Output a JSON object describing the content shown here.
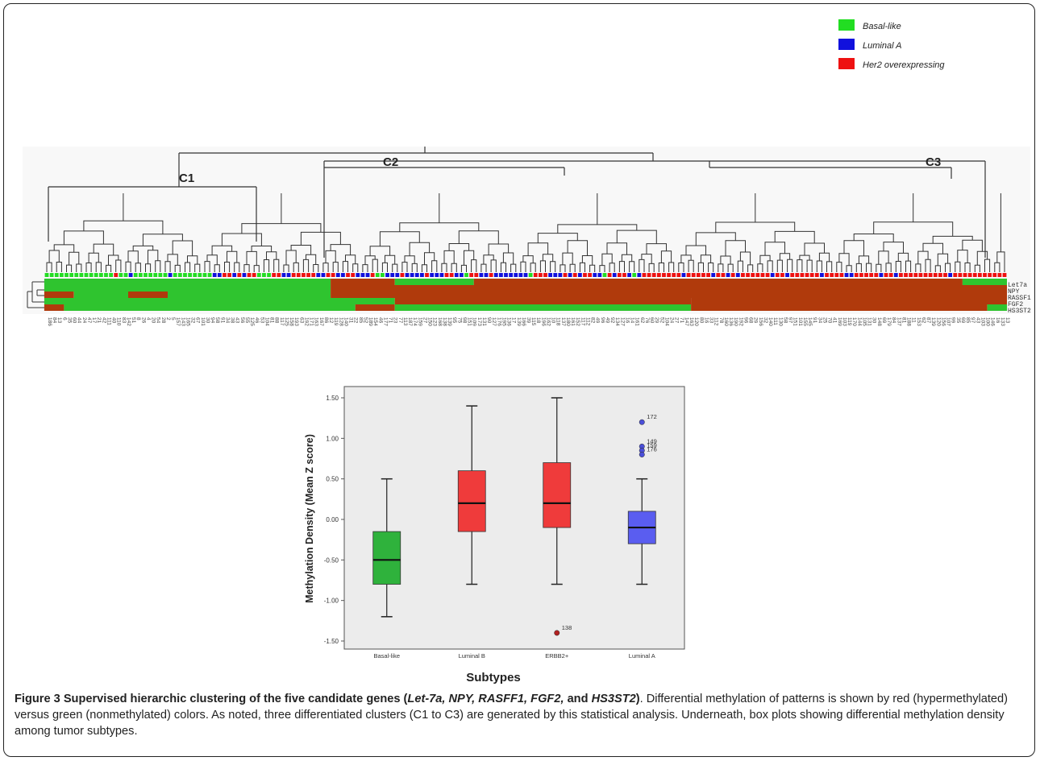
{
  "legend": [
    {
      "label": "Basal-like",
      "color": "#22dd22"
    },
    {
      "label": "Luminal A",
      "color": "#1111dd"
    },
    {
      "label": "Her2 overexpressing",
      "color": "#ee1111"
    }
  ],
  "cluster_labels": [
    "C1",
    "C2",
    "C3"
  ],
  "gene_labels": [
    "Let7a",
    "NPY",
    "RASSF1",
    "FGF2",
    "HS3ST2"
  ],
  "heatmap_colors": {
    "methylated": "#b03a0c",
    "unmethylated": "#2fc42f"
  },
  "sample_ids": [
    "186",
    "84",
    "13",
    "6",
    "35",
    "60",
    "44",
    "24",
    "47",
    "17",
    "21",
    "42",
    "111",
    "40",
    "110",
    "83",
    "142",
    "51",
    "8",
    "26",
    "4",
    "20",
    "54",
    "28",
    "2",
    "5",
    "157",
    "143",
    "165",
    "32",
    "67",
    "101",
    "30",
    "94",
    "58",
    "91",
    "34",
    "38",
    "43",
    "56",
    "55",
    "125",
    "46",
    "53",
    "104",
    "81",
    "88",
    "117",
    "125",
    "158",
    "193",
    "63",
    "192",
    "171",
    "163",
    "167",
    "86",
    "12",
    "119",
    "128",
    "140",
    "31",
    "22",
    "85",
    "52",
    "189",
    "154",
    "46",
    "177",
    "71",
    "23",
    "77",
    "113",
    "187",
    "174",
    "159",
    "27",
    "150",
    "123",
    "168",
    "138",
    "139",
    "95",
    "75",
    "98",
    "151",
    "109",
    "173",
    "131",
    "90",
    "127",
    "176",
    "195",
    "136",
    "17",
    "139",
    "166",
    "39",
    "115",
    "18",
    "196",
    "162",
    "10",
    "118",
    "137",
    "180",
    "161",
    "152",
    "117",
    "112",
    "82",
    "49",
    "96",
    "49",
    "92",
    "134",
    "127",
    "16",
    "14",
    "161",
    "62",
    "76",
    "60",
    "29",
    "52",
    "104",
    "24",
    "27",
    "71",
    "147",
    "163",
    "120",
    "80",
    "16",
    "33",
    "112",
    "78",
    "160",
    "136",
    "190",
    "192",
    "96",
    "68",
    "29",
    "156",
    "32",
    "140",
    "111",
    "130",
    "58",
    "97",
    "151",
    "101",
    "155",
    "145",
    "91",
    "34",
    "25",
    "70",
    "41",
    "169",
    "103",
    "119",
    "170",
    "144",
    "105",
    "131",
    "30",
    "148",
    "69",
    "179",
    "84",
    "137",
    "81",
    "188",
    "11",
    "153",
    "62",
    "87",
    "139",
    "120",
    "156",
    "107",
    "99",
    "35",
    "69",
    "85",
    "97",
    "43",
    "103",
    "100",
    "146",
    "16",
    "133",
    "13"
  ],
  "sample_subtypes": "ggggggggggggggrggbgggggggbggggggggbbrrbrbrrgggrrbbrrrrrbbrrbbrrbbbrggbbbrbbbbrbbbrrbbgrrbbrbbbbbbbgrrrbbbrbrbrrbbgrbrrbgbrrrrrrrrbrrrrrbrrbrbrrrrrrbrrbrrrrrrbrrrrbbrrrrrbrrbrrrrrrrrrrbrrrrrrrrrrrrrgrrr",
  "boxplot": {
    "ylabel": "Methylation Density (Mean Z score)",
    "xlabel": "Subtypes",
    "yticks": [
      "1.50",
      "1.00",
      "0.50",
      "0.00",
      "-0.50",
      "-1.00",
      "-1.50"
    ]
  },
  "chart_data": {
    "type": "boxplot",
    "xlabel": "Subtypes",
    "ylabel": "Methylation Density (Mean Z score)",
    "ylim": [
      -1.5,
      1.5
    ],
    "categories": [
      "Basal-like",
      "Luminal B",
      "ERBB2+",
      "Luminal A"
    ],
    "colors": [
      "#2fb23c",
      "#ef3b3b",
      "#ef3b3b",
      "#5a5df0"
    ],
    "boxes": [
      {
        "min": -1.2,
        "q1": -0.8,
        "median": -0.5,
        "q3": -0.15,
        "max": 0.5
      },
      {
        "min": -0.8,
        "q1": -0.15,
        "median": 0.2,
        "q3": 0.6,
        "max": 1.4
      },
      {
        "min": -0.8,
        "q1": -0.1,
        "median": 0.2,
        "q3": 0.7,
        "max": 1.5
      },
      {
        "min": -0.8,
        "q1": -0.3,
        "median": -0.1,
        "q3": 0.1,
        "max": 0.5
      }
    ],
    "outliers": [
      {
        "category": "ERBB2+",
        "value": -1.4,
        "label": "138",
        "color": "#b22222"
      },
      {
        "category": "Luminal A",
        "value": 1.2,
        "label": "172",
        "color": "#4b4fd8"
      },
      {
        "category": "Luminal A",
        "value": 0.9,
        "label": "149",
        "color": "#4b4fd8"
      },
      {
        "category": "Luminal A",
        "value": 0.85,
        "label": "159",
        "color": "#4b4fd8"
      },
      {
        "category": "Luminal A",
        "value": 0.8,
        "label": "176",
        "color": "#4b4fd8"
      }
    ],
    "grid": false
  },
  "caption": {
    "title_prefix": "Figure 3 Supervised hierarchic clustering of the five candidate genes (",
    "genes_italic": "Let-7a, NPY, RASFF1, FGF2,",
    "and_word": " and ",
    "last_gene": "HS3ST2",
    "title_suffix": ")",
    "body": ". Differential methylation of patterns is shown by red (hypermethylated) versus green (nonmethylated) colors. As noted, three differentiated clusters (C1 to C3) are generated by this statistical analysis. Underneath, box plots showing differential methylation density among tumor subtypes."
  }
}
